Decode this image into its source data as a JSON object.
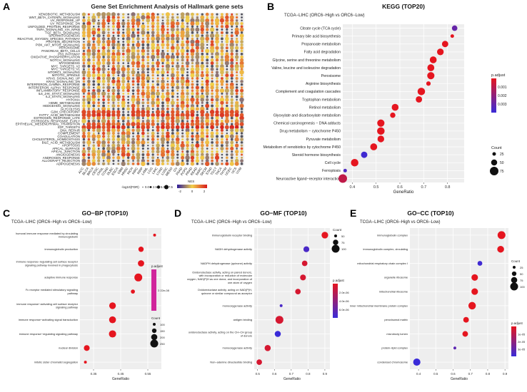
{
  "figure": {
    "panels": [
      {
        "id": "A",
        "letter": "A"
      },
      {
        "id": "B",
        "letter": "B"
      },
      {
        "id": "C",
        "letter": "C"
      },
      {
        "id": "D",
        "letter": "D"
      },
      {
        "id": "E",
        "letter": "E"
      }
    ]
  },
  "colors": {
    "nes_low": "#2c1a9a",
    "nes_mid": "#f2d04a",
    "nes_high": "#d7191c",
    "p_low": "#e5151f",
    "p_high": "#3a2bd8",
    "grid_bg": "#eeeeee",
    "dot_gray": "#55555f",
    "panel_c_bar": "#d0259b"
  },
  "chart_data": [
    {
      "panel": "A",
      "type": "heatmap-dotplot",
      "title": "Gene Set Enrichment Analysis of Hallmark gene sets",
      "rows": [
        "XENOBIOTIC_METABOLISM",
        "WNT_BETA_CATENIN_SIGNALING",
        "UV_RESPONSE_UP",
        "UV_RESPONSE_DN",
        "UNFOLDED_PROTEIN_RESPONSE",
        "TNFA_SIGNALING_VIA_NFKB",
        "TGF_BETA_SIGNALING",
        "SPERMATOGENESIS",
        "REACTIVE_OXYGEN_SPECIES_PATHWAY",
        "PROTEIN_SECRETION",
        "PI3K_AKT_MTOR_SIGNALING",
        "PEROXISOME",
        "PANCREAS_BETA_CELLS",
        "P53_PATHWAY",
        "OXIDATIVE_PHOSPHORYLATION",
        "NOTCH_SIGNALING",
        "MYOGENESIS",
        "MYC_TARGETS_V2",
        "MYC_TARGETS_V1",
        "MTORC1_SIGNALING",
        "MITOTIC_SPINDLE",
        "KRAS_SIGNALING_UP",
        "KRAS_SIGNALING_DN",
        "INTERFERON_GAMMA_RESPONSE",
        "INTERFERON_ALPHA_RESPONSE",
        "INFLAMMATORY_RESPONSE",
        "IL6_JAK_STAT3_SIGNALING",
        "IL2_STAT5_SIGNALING",
        "HYPOXIA",
        "HEME_METABOLISM",
        "HEDGEHOG_SIGNALING",
        "GLYCOLYSIS",
        "G2M_CHECKPOINT",
        "FATTY_ACID_METABOLISM",
        "ESTROGEN_RESPONSE_LATE",
        "ESTROGEN_RESPONSE_EARLY",
        "EPITHELIAL_MESENCHYMAL_TRANSITION",
        "E2F_TARGETS",
        "DNA_REPAIR",
        "COMPLEMENT",
        "COAGULATION",
        "CHOLESTEROL_HOMEOSTASIS",
        "BILE_ACID_METABOLISM",
        "APOPTOSIS",
        "APICAL_SURFACE",
        "APICAL_JUNCTION",
        "ANGIOGENESIS",
        "ANDROGEN_RESPONSE",
        "ALLOGRAFT_REJECTION",
        "ADIPOGENESIS"
      ],
      "columns": [
        "ACC",
        "BLCA",
        "BRCA",
        "CESC",
        "CHOL",
        "COAD",
        "DLBC",
        "ESCA",
        "GBM",
        "HNSC",
        "KICH",
        "KIRC",
        "KIRP",
        "LAML",
        "LGG",
        "LIHC",
        "LUAD",
        "LUSC",
        "MESO",
        "OV",
        "PAAD",
        "PCPG",
        "PRAD",
        "READ",
        "SARC",
        "SKCM",
        "STAD",
        "TGCT",
        "THCA",
        "THYM",
        "UCEC",
        "UCS",
        "UVM"
      ],
      "highlight_rows_nes": {
        "FATTY_ACID_METABOLISM": 2.2,
        "G2M_CHECKPOINT": 2.0,
        "E2F_TARGETS": 2.3,
        "EPITHELIAL_MESENCHYMAL_TRANSITION": 1.8
      },
      "size_legend_title": "-log10(FDR)",
      "size_legend_values": [
        "0.0",
        "2.5",
        "5.0",
        "7.5"
      ],
      "color_legend_title": "NES",
      "color_legend_ticks": [
        "-2",
        "0",
        "2"
      ]
    },
    {
      "panel": "B",
      "type": "scatter",
      "title": "KEGG (TOP20)",
      "subtitle": "TCGA−LIHC (ORC6−High vs ORC6−Low)",
      "xlabel": "GeneRatio",
      "xlim": [
        0.36,
        0.87
      ],
      "xticks": [
        "0.4",
        "0.5",
        "0.6",
        "0.7",
        "0.8"
      ],
      "color_legend_title": "p.adjust",
      "color_legend_ticks": [
        "0.001",
        "0.002",
        "0.003"
      ],
      "size_legend_title": "Count",
      "size_legend_ticks": [
        "25",
        "50",
        "75"
      ],
      "terms": [
        "Citrate cycle (TCA cycle)",
        "Primary bile acid biosynthesis",
        "Propanoate metabolism",
        "Fatty acid degradation",
        "Glycine, serine and threonine metabolism",
        "Valine, leucine and isoleucine degradation",
        "Peroxisome",
        "Arginine biosynthesis",
        "Complement and coagulation cascades",
        "Tryptophan metabolism",
        "Retinol metabolism",
        "Glyoxylate and dicarboxylate metabolism",
        "Chemical carcinogenesis − DNA adducts",
        "Drug metabolism − cytochrome P450",
        "Pyruvate metabolism",
        "Metabolism of xenobiotics by cytochrome P450",
        "Steroid hormone biosynthesis",
        "Cell cycle",
        "Ferroptosis",
        "Neuroactive ligand−receptor interaction"
      ],
      "x": [
        0.83,
        0.82,
        0.79,
        0.77,
        0.74,
        0.73,
        0.73,
        0.72,
        0.69,
        0.68,
        0.58,
        0.57,
        0.52,
        0.52,
        0.52,
        0.49,
        0.45,
        0.41,
        0.37,
        0.36
      ],
      "count": [
        30,
        20,
        40,
        45,
        48,
        50,
        55,
        22,
        60,
        40,
        48,
        28,
        55,
        60,
        45,
        50,
        40,
        60,
        20,
        85
      ],
      "p_adjust": [
        0.0026,
        0.0006,
        0.0006,
        0.0006,
        0.0006,
        0.0005,
        0.0006,
        0.0006,
        0.0006,
        0.0006,
        0.0006,
        0.0006,
        0.0006,
        0.0006,
        0.0006,
        0.0006,
        0.0032,
        0.0006,
        0.003,
        0.0012
      ]
    },
    {
      "panel": "C",
      "type": "scatter",
      "title": "GO−BP (TOP10)",
      "subtitle": "TCGA−LIHC (ORC6−High vs ORC6−Low)",
      "xlabel": "GeneRatio",
      "xlim": [
        0.3,
        0.6
      ],
      "xticks": [
        "0.35",
        "0.45",
        "0.55"
      ],
      "color_legend_title": "p.adjust",
      "color_legend_ticks": [
        "2.22e-08"
      ],
      "size_legend_title": "Count",
      "size_legend_ticks": [
        "100",
        "150",
        "200",
        "250"
      ],
      "terms": [
        "humoral immune response mediated by circulating immunoglobulin",
        "immunoglobulin production",
        "immune response−regulating cell surface receptor signaling pathway involved in phagocytosis",
        "adaptive immune response",
        "Fc receptor mediated stimulatory signaling pathway",
        "immune response−activating cell surface receptor signaling pathway",
        "immune response−activating signal transduction",
        "immune response−regulating signaling pathway",
        "nuclear division",
        "mitotic sister chromatid segregation"
      ],
      "x": [
        0.575,
        0.525,
        0.525,
        0.515,
        0.495,
        0.42,
        0.42,
        0.42,
        0.325,
        0.32
      ],
      "count": [
        90,
        130,
        170,
        260,
        100,
        190,
        200,
        220,
        150,
        90
      ],
      "p_adjust": [
        2.22e-08,
        2.22e-08,
        2.22e-08,
        2.22e-08,
        2.22e-08,
        2.22e-08,
        2.22e-08,
        2.22e-08,
        2.22e-08,
        2.22e-08
      ]
    },
    {
      "panel": "D",
      "type": "scatter",
      "title": "GO−MF (TOP10)",
      "subtitle": "TCGA−LIHC (ORC6−High vs ORC6−Low)",
      "xlabel": "GeneRatio",
      "xlim": [
        0.48,
        0.93
      ],
      "xticks": [
        "0.5",
        "0.6",
        "0.7",
        "0.8",
        "0.9"
      ],
      "color_legend_title": "p.adjust",
      "color_legend_ticks": [
        "2.0e-06",
        "4.0e-06",
        "6.0e-06"
      ],
      "size_legend_title": "Count",
      "size_legend_ticks": [
        "50",
        "75",
        "100"
      ],
      "terms": [
        "immunoglobulin receptor binding",
        "NADH dehydrogenase activity",
        "NADPH dehydrogenase (quinone) activity",
        "Oxidoreductase activity, acting on paired donors, with incorporation or reduction of molecular oxygen, NAD(P)H as one donor, and incorporation of one atom of oxygen",
        "Oxidoreductase activity, acting on NAD(P)H, quinone or similar compound as acceptor",
        "monooxygenase activity",
        "antigen binding",
        "oxidoreductase activity, acting on the CH−CH group of donors",
        "monooxygenase activity",
        "Non−adenine dinucleotide binding"
      ],
      "x": [
        0.9,
        0.79,
        0.78,
        0.77,
        0.74,
        0.64,
        0.63,
        0.62,
        0.56,
        0.51
      ],
      "count": [
        60,
        45,
        40,
        45,
        40,
        20,
        90,
        50,
        50,
        40
      ],
      "p_adjust": [
        1e-06,
        6e-06,
        1.5e-06,
        1.5e-06,
        1.5e-06,
        6e-06,
        1.5e-06,
        6.5e-06,
        1.5e-06,
        1.5e-06
      ]
    },
    {
      "panel": "E",
      "type": "scatter",
      "title": "GO−CC (TOP10)",
      "subtitle": "TCGA−LIHC (ORC6−High vs ORC6−Low)",
      "xlabel": "GeneRatio",
      "xlim": [
        0.35,
        0.92
      ],
      "xticks": [
        "0.4",
        "0.5",
        "0.6",
        "0.7",
        "0.8",
        "0.9"
      ],
      "color_legend_title": "p.adjust",
      "color_legend_ticks": [
        "1e-05",
        "2e-05",
        "3e-05"
      ],
      "size_legend_title": "Count",
      "size_legend_ticks": [
        "25",
        "50",
        "75",
        "100"
      ],
      "terms": [
        "immunoglobulin complex",
        "immunoglobulin complex, circulating",
        "mitochondrial respiratory chain complex I",
        "organelle ribosome",
        "mitochondrial ribosome",
        "inner mitochondrial membrane protein complex",
        "peroxisomal matrix",
        "microbody lumen",
        "protein−lipid complex",
        "condensed chromosome"
      ],
      "x": [
        0.88,
        0.875,
        0.755,
        0.725,
        0.725,
        0.71,
        0.675,
        0.67,
        0.61,
        0.39
      ],
      "count": [
        85,
        60,
        30,
        55,
        55,
        75,
        40,
        40,
        20,
        70
      ],
      "p_adjust": [
        5e-06,
        5e-06,
        3.3e-05,
        5e-06,
        5e-06,
        5e-06,
        5e-06,
        5e-06,
        2.8e-05,
        3.4e-05
      ]
    }
  ]
}
